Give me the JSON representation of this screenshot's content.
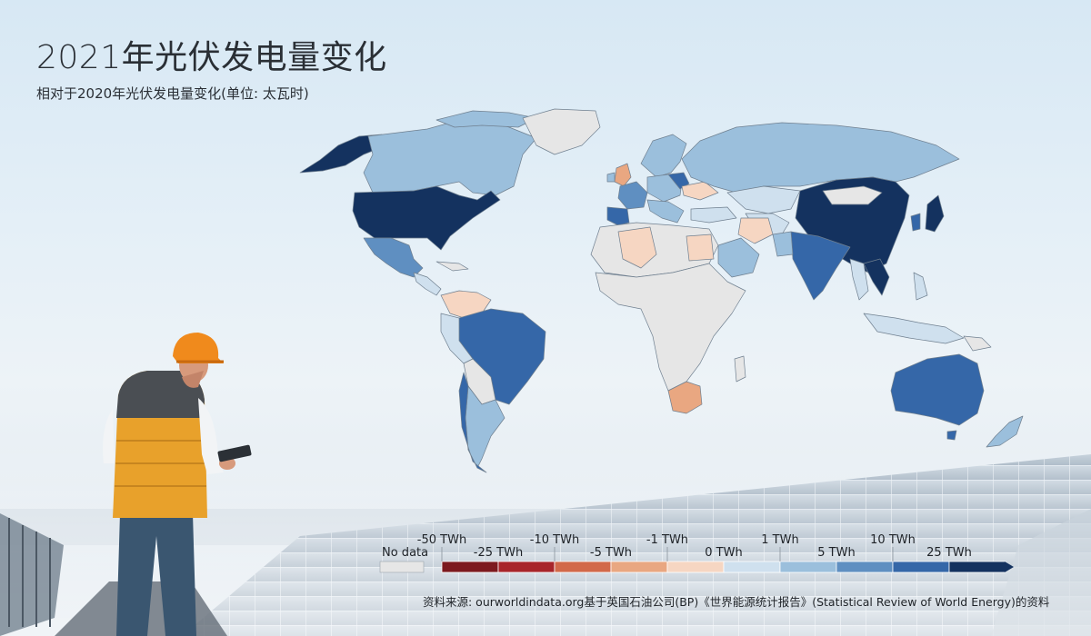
{
  "title": "2021年光伏发电量变化",
  "subtitle": "相对于2020年光伏发电量变化(单位: 太瓦时)",
  "source": "资料来源: ourworldindata.org基于英国石油公司(BP)《世界能源统计报告》(Statistical Review of World Energy)的资料",
  "legend": {
    "no_data_label": "No data",
    "no_data_color": "#e6e6e6",
    "top_labels": [
      "-50 TWh",
      "-10 TWh",
      "-1 TWh",
      "1 TWh",
      "10 TWh"
    ],
    "bottom_labels": [
      "-25 TWh",
      "-5 TWh",
      "0 TWh",
      "5 TWh",
      "25 TWh"
    ],
    "bins": [
      {
        "range": "-50 to -25 TWh",
        "color": "#7d1a1f"
      },
      {
        "range": "-25 to -10 TWh",
        "color": "#a8252a"
      },
      {
        "range": "-10 to -5 TWh",
        "color": "#d2694a"
      },
      {
        "range": "-5 to -1 TWh",
        "color": "#e9a781"
      },
      {
        "range": "-1 to 0 TWh",
        "color": "#f6d6c2"
      },
      {
        "range": "0 to 1 TWh",
        "color": "#cfe0ee"
      },
      {
        "range": "1 to 5 TWh",
        "color": "#9bbfdc"
      },
      {
        "range": "5 to 10 TWh",
        "color": "#5f8fc1"
      },
      {
        "range": "10 to 25 TWh",
        "color": "#3567a8"
      },
      {
        "range": ">25 TWh",
        "color": "#14325f"
      }
    ]
  },
  "map_categories": {
    "no_data": "#e6e6e6",
    "large_increase": "#14325f",
    "medium_increase": "#3567a8",
    "small_increase": "#5f8fc1",
    "light_increase": "#9bbfdc",
    "slight_increase": "#cfe0ee",
    "slight_decrease": "#f6d6c2",
    "light_decrease": "#e9a781"
  },
  "worker": {
    "helmet_color": "#f08a1c",
    "vest_color": "#e8a12b"
  }
}
